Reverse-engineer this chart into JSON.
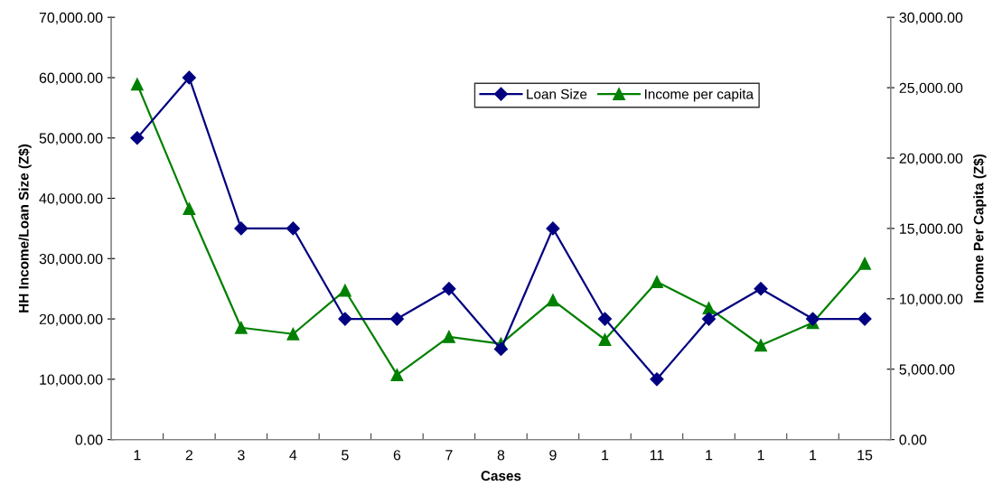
{
  "chart_data": {
    "type": "line",
    "xlabel": "Cases",
    "ylabel": "HH Income/Loan Size (Z$)",
    "y2label": "Income Per Capita (Z$)",
    "categories": [
      "1",
      "2",
      "3",
      "4",
      "5",
      "6",
      "7",
      "8",
      "9",
      "1",
      "11",
      "1",
      "1",
      "1",
      "15"
    ],
    "series": [
      {
        "name": "Loan Size",
        "color": "#000080",
        "marker": "diamond",
        "values": [
          50000,
          60000,
          35000,
          35000,
          20000,
          20000,
          25000,
          15000,
          35000,
          20000,
          10000,
          20000,
          25000,
          20000,
          20000
        ]
      },
      {
        "name": "Income per capita",
        "color": "#008000",
        "marker": "triangle",
        "axis": "y2",
        "values": [
          25250,
          16400,
          7950,
          7500,
          10600,
          4600,
          7300,
          6800,
          9900,
          7100,
          11200,
          9350,
          6700,
          8300,
          12500
        ]
      }
    ],
    "ylim": [
      0,
      70000
    ],
    "yticks": [
      {
        "value": 0,
        "label": "0.00"
      },
      {
        "value": 10000,
        "label": "10,000.00"
      },
      {
        "value": 20000,
        "label": "20,000.00"
      },
      {
        "value": 30000,
        "label": "30,000.00"
      },
      {
        "value": 40000,
        "label": "40,000.00"
      },
      {
        "value": 50000,
        "label": "50,000.00"
      },
      {
        "value": 60000,
        "label": "60,000.00"
      },
      {
        "value": 70000,
        "label": "70,000.00"
      }
    ],
    "y2lim": [
      0,
      30000
    ],
    "y2ticks": [
      {
        "value": 0,
        "label": "0.00"
      },
      {
        "value": 5000,
        "label": "5,000.00"
      },
      {
        "value": 10000,
        "label": "10,000.00"
      },
      {
        "value": 15000,
        "label": "15,000.00"
      },
      {
        "value": 20000,
        "label": "20,000.00"
      },
      {
        "value": 25000,
        "label": "25,000.00"
      },
      {
        "value": 30000,
        "label": "30,000.00"
      }
    ],
    "grid": false,
    "legend": "top right",
    "line_style": "solid"
  }
}
